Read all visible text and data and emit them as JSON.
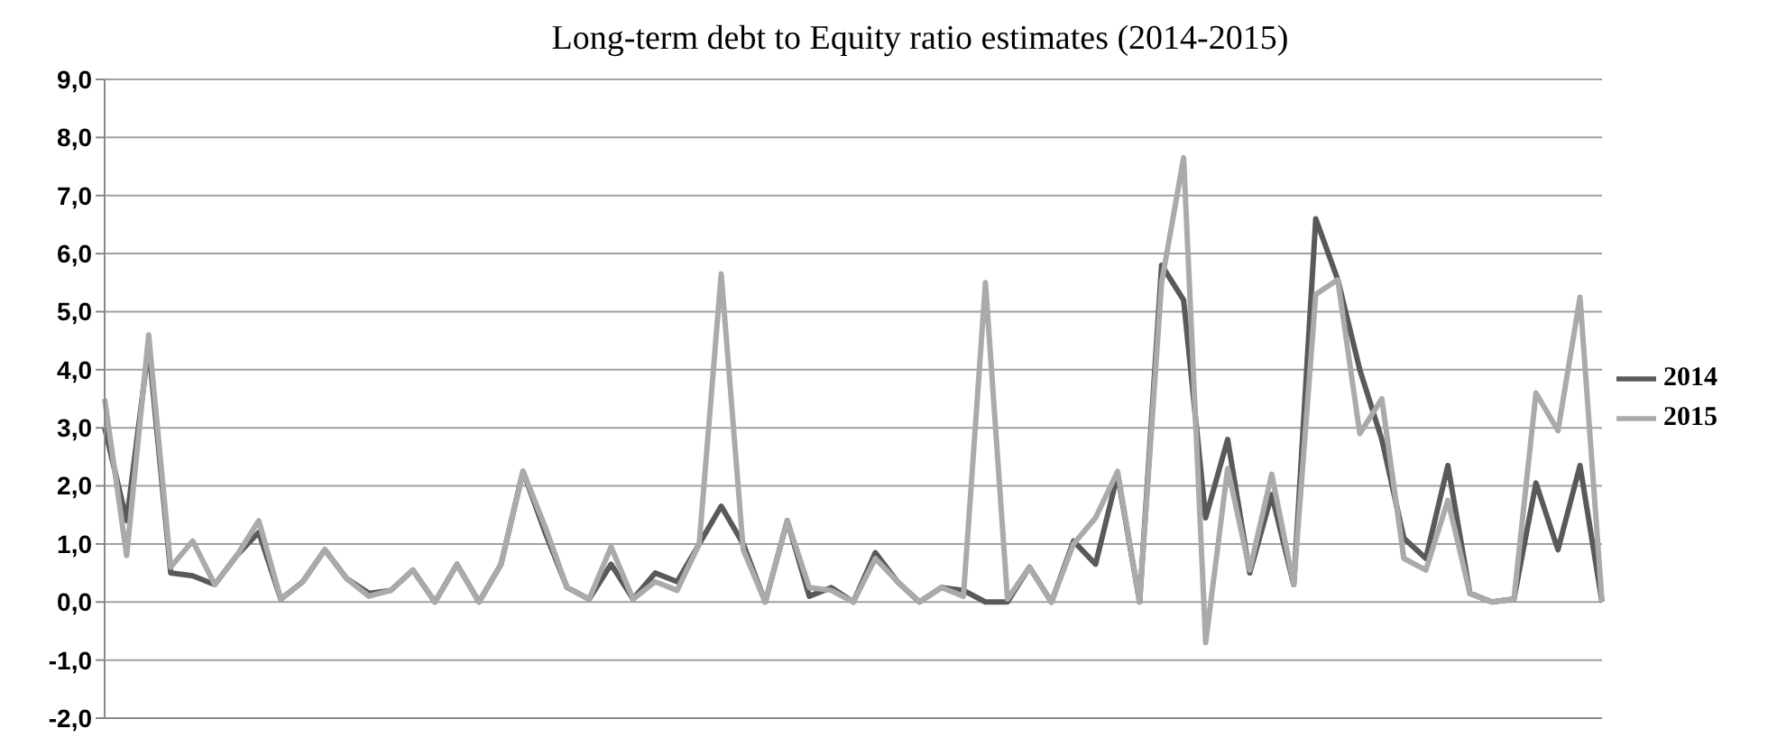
{
  "chart_data": {
    "type": "line",
    "title": "Long-term debt to Equity ratio estimates (2014-2015)",
    "categories": [
      null,
      null,
      null,
      null,
      null,
      null,
      null,
      null,
      null,
      null,
      null,
      null,
      null,
      null,
      null,
      null,
      null,
      null,
      null,
      null,
      null,
      null,
      null,
      null,
      null,
      null,
      null,
      null,
      null,
      null,
      null,
      null,
      null,
      null,
      null,
      null,
      null,
      null,
      null,
      null,
      null,
      null,
      null,
      null,
      null,
      null,
      null,
      null,
      null,
      null,
      null,
      null,
      null,
      null,
      null,
      null,
      null,
      null,
      null,
      null,
      null,
      null,
      null,
      null,
      null,
      null,
      null,
      null,
      null
    ],
    "series": [
      {
        "name": "2014",
        "color": "#595959",
        "values": [
          3.0,
          1.4,
          4.4,
          0.5,
          0.45,
          0.3,
          0.8,
          1.2,
          0.05,
          0.35,
          0.9,
          0.4,
          0.15,
          0.2,
          0.55,
          0.0,
          0.65,
          0.0,
          0.65,
          2.25,
          1.2,
          0.25,
          0.05,
          0.65,
          0.05,
          0.5,
          0.35,
          1.0,
          1.65,
          1.0,
          0.0,
          1.4,
          0.1,
          0.25,
          0.0,
          0.85,
          0.35,
          0.0,
          0.25,
          0.2,
          0.0,
          0.0,
          0.6,
          0.0,
          1.05,
          0.65,
          2.2,
          0.0,
          5.8,
          5.2,
          1.45,
          2.8,
          0.5,
          1.85,
          0.3,
          6.6,
          5.55,
          4.0,
          2.8,
          1.1,
          0.75,
          2.35,
          0.15,
          0.0,
          0.05,
          2.05,
          0.9,
          2.35,
          0.0
        ]
      },
      {
        "name": "2015",
        "color": "#aaaaaa",
        "values": [
          3.5,
          0.8,
          4.6,
          0.6,
          1.05,
          0.3,
          0.8,
          1.4,
          0.05,
          0.35,
          0.9,
          0.4,
          0.1,
          0.2,
          0.55,
          0.0,
          0.65,
          0.0,
          0.65,
          2.25,
          1.3,
          0.25,
          0.05,
          0.95,
          0.05,
          0.35,
          0.2,
          1.0,
          5.65,
          0.9,
          0.0,
          1.4,
          0.25,
          0.2,
          0.0,
          0.75,
          0.35,
          0.0,
          0.25,
          0.1,
          5.5,
          0.05,
          0.6,
          0.0,
          1.0,
          1.45,
          2.25,
          0.0,
          5.5,
          7.65,
          -0.7,
          2.3,
          0.55,
          2.2,
          0.3,
          5.3,
          5.55,
          2.9,
          3.5,
          0.75,
          0.55,
          1.75,
          0.15,
          0.0,
          0.05,
          3.6,
          2.95,
          5.25,
          0.0
        ]
      }
    ],
    "ylim": [
      -2,
      9
    ],
    "yticks": [
      {
        "value": -2,
        "label": "-2,0"
      },
      {
        "value": -1,
        "label": "-1,0"
      },
      {
        "value": 0,
        "label": "0,0"
      },
      {
        "value": 1,
        "label": "1,0"
      },
      {
        "value": 2,
        "label": "2,0"
      },
      {
        "value": 3,
        "label": "3,0"
      },
      {
        "value": 4,
        "label": "4,0"
      },
      {
        "value": 5,
        "label": "5,0"
      },
      {
        "value": 6,
        "label": "6,0"
      },
      {
        "value": 7,
        "label": "7,0"
      },
      {
        "value": 8,
        "label": "8,0"
      },
      {
        "value": 9,
        "label": "9,0"
      }
    ],
    "grid": "y",
    "legend": "right",
    "marker": "none",
    "line_style": "solid",
    "tick_labels": "y"
  }
}
